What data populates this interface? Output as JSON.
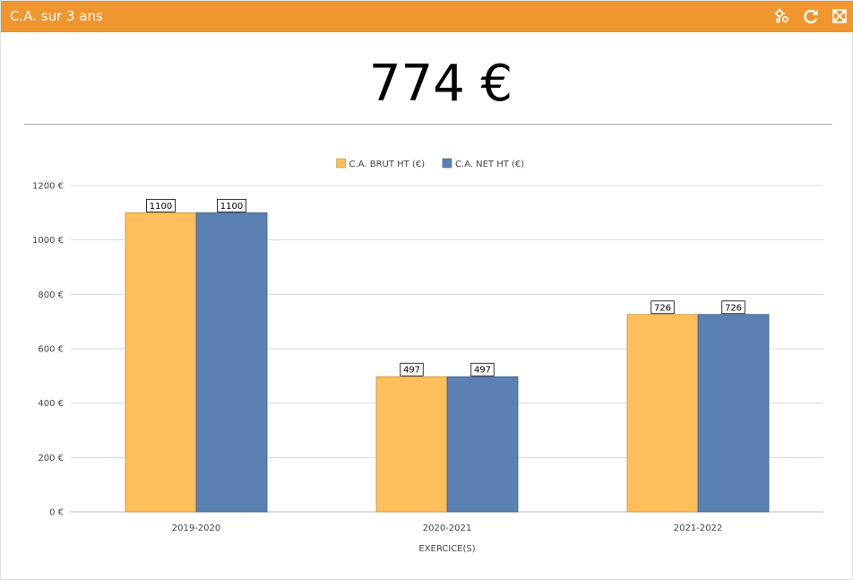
{
  "widget": {
    "title": "C.A. sur 3 ans",
    "kpi_value": "774 €",
    "accent_color": "#f0962e",
    "icons": [
      "settings-icon",
      "refresh-icon",
      "fullscreen-icon"
    ]
  },
  "chart_data": {
    "type": "bar",
    "title": "",
    "xlabel": "EXERCICE(S)",
    "ylabel": "",
    "categories": [
      "2019-2020",
      "2020-2021",
      "2021-2022"
    ],
    "series": [
      {
        "name": "C.A. BRUT HT (€)",
        "color": "#ffbf5c",
        "values": [
          1100,
          497,
          726
        ]
      },
      {
        "name": "C.A. NET HT (€)",
        "color": "#5b80b2",
        "values": [
          1100,
          497,
          726
        ]
      }
    ],
    "ylim": [
      0,
      1200
    ],
    "yticks": [
      0,
      200,
      400,
      600,
      800,
      1000,
      1200
    ],
    "ytick_suffix": " €",
    "grid": true,
    "legend_position": "top-center",
    "data_labels": true
  }
}
